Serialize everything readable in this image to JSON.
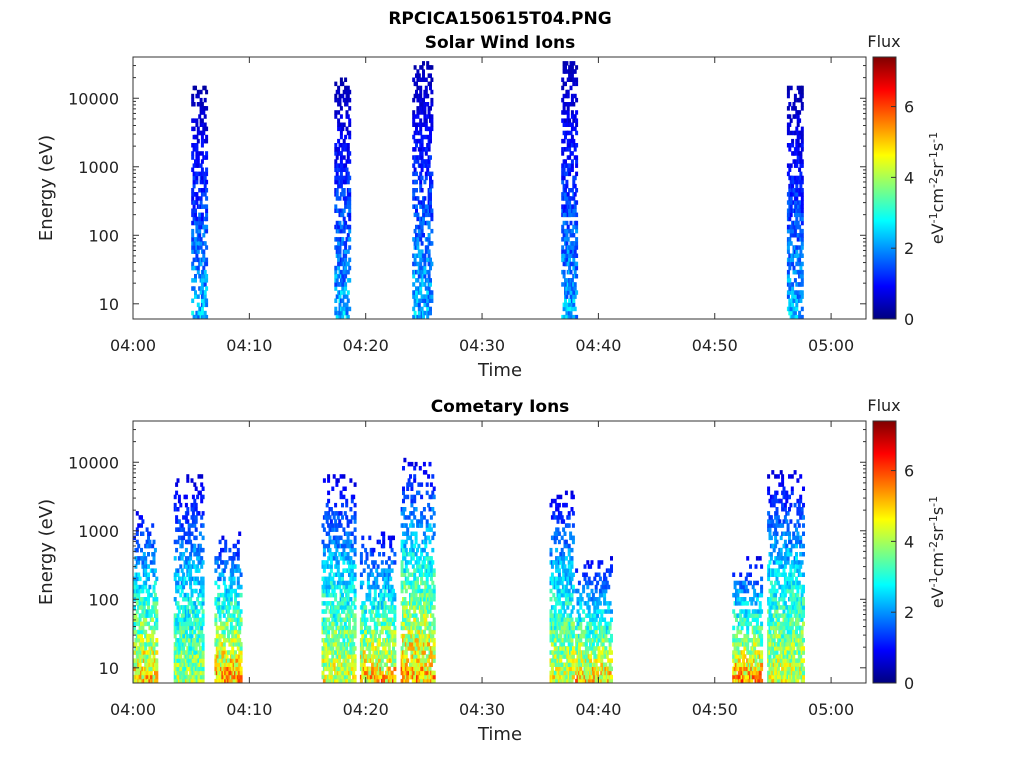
{
  "figure": {
    "filename": "RPCICA150615T04.PNG"
  },
  "colormap": {
    "name": "jet",
    "stops": [
      "#00007f",
      "#0000ff",
      "#007fff",
      "#00ffff",
      "#7fff7f",
      "#ffff00",
      "#ff7f00",
      "#ff0000",
      "#7f0000"
    ]
  },
  "chart_data": [
    {
      "type": "heatmap",
      "title": "Solar Wind Ions",
      "xlabel": "Time",
      "ylabel": "Energy (eV)",
      "xlim": [
        "04:00",
        "05:03"
      ],
      "ylim": [
        6,
        40000
      ],
      "yscale": "log",
      "xticks": [
        "04:00",
        "04:10",
        "04:20",
        "04:30",
        "04:40",
        "04:50",
        "05:00"
      ],
      "yticks": [
        "10",
        "100",
        "1000",
        "10000"
      ],
      "colorbar": {
        "label": "Flux",
        "unit": "eV-1cm-2sr-1s-1",
        "range": [
          0,
          7.4
        ],
        "ticks": [
          "0",
          "2",
          "4",
          "6"
        ]
      },
      "bursts": [
        {
          "start": "04:05.0",
          "end": "04:06.3",
          "emin": 6,
          "emax": 15000,
          "peak_flux": 3.0
        },
        {
          "start": "04:17.3",
          "end": "04:18.6",
          "emin": 6,
          "emax": 20000,
          "peak_flux": 3.0
        },
        {
          "start": "04:24.0",
          "end": "04:25.6",
          "emin": 6,
          "emax": 35000,
          "peak_flux": 3.0
        },
        {
          "start": "04:36.8",
          "end": "04:38.0",
          "emin": 6,
          "emax": 35000,
          "peak_flux": 3.0
        },
        {
          "start": "04:56.2",
          "end": "04:57.5",
          "emin": 6,
          "emax": 15000,
          "peak_flux": 3.0
        }
      ]
    },
    {
      "type": "heatmap",
      "title": "Cometary Ions",
      "xlabel": "Time",
      "ylabel": "Energy (eV)",
      "xlim": [
        "04:00",
        "05:03"
      ],
      "ylim": [
        6,
        40000
      ],
      "yscale": "log",
      "xticks": [
        "04:00",
        "04:10",
        "04:20",
        "04:30",
        "04:40",
        "04:50",
        "05:00"
      ],
      "yticks": [
        "10",
        "100",
        "1000",
        "10000"
      ],
      "colorbar": {
        "label": "Flux",
        "unit": "eV-1cm-2sr-1s-1",
        "range": [
          0,
          7.4
        ],
        "ticks": [
          "0",
          "2",
          "4",
          "6"
        ]
      },
      "bursts": [
        {
          "start": "04:00.0",
          "end": "04:02.0",
          "emin": 6,
          "emax": 2000,
          "peak_flux": 6.2
        },
        {
          "start": "04:03.5",
          "end": "04:06.0",
          "emin": 6,
          "emax": 7000,
          "peak_flux": 5.0
        },
        {
          "start": "04:07.0",
          "end": "04:09.2",
          "emin": 6,
          "emax": 1000,
          "peak_flux": 6.5
        },
        {
          "start": "04:16.2",
          "end": "04:19.0",
          "emin": 6,
          "emax": 7000,
          "peak_flux": 5.5
        },
        {
          "start": "04:19.5",
          "end": "04:22.5",
          "emin": 6,
          "emax": 1000,
          "peak_flux": 6.3
        },
        {
          "start": "04:23.0",
          "end": "04:25.8",
          "emin": 6,
          "emax": 11000,
          "peak_flux": 6.4
        },
        {
          "start": "04:35.8",
          "end": "04:37.8",
          "emin": 6,
          "emax": 4500,
          "peak_flux": 5.5
        },
        {
          "start": "04:38.0",
          "end": "04:41.0",
          "emin": 6,
          "emax": 400,
          "peak_flux": 6.2
        },
        {
          "start": "04:51.5",
          "end": "04:54.0",
          "emin": 6,
          "emax": 400,
          "peak_flux": 6.5
        },
        {
          "start": "04:54.5",
          "end": "04:57.5",
          "emin": 6,
          "emax": 8000,
          "peak_flux": 5.5
        }
      ]
    }
  ]
}
